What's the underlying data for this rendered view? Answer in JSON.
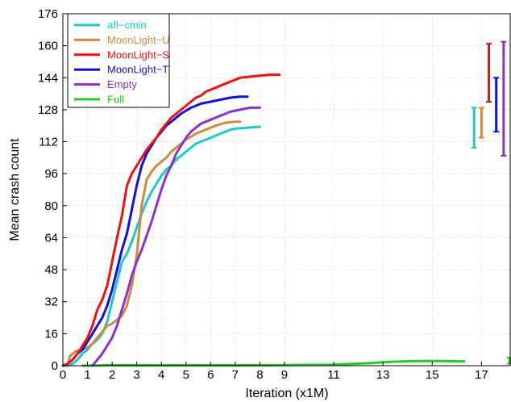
{
  "chart_data": {
    "type": "line",
    "title": "",
    "xlabel": "Iteration (x1M)",
    "ylabel": "Mean crash count",
    "xlim": [
      0,
      18.2
    ],
    "ylim": [
      0,
      176
    ],
    "x_ticks": [
      0,
      1,
      2,
      3,
      4,
      5,
      6,
      7,
      8,
      9,
      11,
      13,
      15,
      17
    ],
    "y_ticks": [
      0,
      16,
      32,
      48,
      64,
      80,
      96,
      112,
      128,
      144,
      160,
      176
    ],
    "grid": true,
    "legend_position": "top-left",
    "series": [
      {
        "name": "afl−cmin",
        "color": "#1ec8c8",
        "points": [
          [
            0,
            0
          ],
          [
            0.2,
            0
          ],
          [
            0.4,
            1
          ],
          [
            0.6,
            3
          ],
          [
            0.8,
            6
          ],
          [
            1.0,
            8
          ],
          [
            1.2,
            11
          ],
          [
            1.4,
            13
          ],
          [
            1.6,
            16
          ],
          [
            1.8,
            22
          ],
          [
            2.0,
            32
          ],
          [
            2.2,
            42
          ],
          [
            2.4,
            52
          ],
          [
            2.6,
            56
          ],
          [
            2.8,
            62
          ],
          [
            3.0,
            69
          ],
          [
            3.2,
            76
          ],
          [
            3.4,
            82
          ],
          [
            3.6,
            87
          ],
          [
            3.8,
            91
          ],
          [
            4.0,
            95
          ],
          [
            4.2,
            98
          ],
          [
            4.4,
            100
          ],
          [
            4.6,
            103
          ],
          [
            4.8,
            105
          ],
          [
            5.0,
            107
          ],
          [
            5.2,
            109
          ],
          [
            5.4,
            111
          ],
          [
            5.6,
            112
          ],
          [
            5.8,
            113
          ],
          [
            6.0,
            114
          ],
          [
            6.2,
            115
          ],
          [
            6.4,
            116
          ],
          [
            6.6,
            117
          ],
          [
            6.8,
            118
          ],
          [
            7.0,
            118.5
          ],
          [
            7.5,
            119
          ],
          [
            8.0,
            119.5
          ]
        ]
      },
      {
        "name": "MoonLight−U",
        "color": "#d08a40",
        "points": [
          [
            0,
            0
          ],
          [
            0.2,
            1
          ],
          [
            0.3,
            5
          ],
          [
            0.5,
            7
          ],
          [
            0.7,
            8
          ],
          [
            1.0,
            9
          ],
          [
            1.2,
            11
          ],
          [
            1.4,
            14
          ],
          [
            1.6,
            17
          ],
          [
            1.8,
            20
          ],
          [
            2.0,
            21
          ],
          [
            2.2,
            23
          ],
          [
            2.4,
            25
          ],
          [
            2.6,
            30
          ],
          [
            2.8,
            40
          ],
          [
            3.0,
            55
          ],
          [
            3.2,
            80
          ],
          [
            3.4,
            93
          ],
          [
            3.6,
            97
          ],
          [
            3.8,
            100
          ],
          [
            4.0,
            102
          ],
          [
            4.2,
            104
          ],
          [
            4.4,
            107
          ],
          [
            4.6,
            109
          ],
          [
            4.8,
            111
          ],
          [
            5.0,
            113
          ],
          [
            5.4,
            116
          ],
          [
            5.8,
            118
          ],
          [
            6.2,
            120
          ],
          [
            6.6,
            121.5
          ],
          [
            7.0,
            122
          ],
          [
            7.2,
            122
          ]
        ]
      },
      {
        "name": "MoonLight−S",
        "color": "#ee1111",
        "points": [
          [
            0,
            0
          ],
          [
            0.2,
            1
          ],
          [
            0.4,
            3
          ],
          [
            0.6,
            6
          ],
          [
            0.8,
            10
          ],
          [
            1.0,
            14
          ],
          [
            1.2,
            20
          ],
          [
            1.4,
            28
          ],
          [
            1.6,
            33
          ],
          [
            1.8,
            40
          ],
          [
            2.0,
            52
          ],
          [
            2.2,
            64
          ],
          [
            2.4,
            75
          ],
          [
            2.6,
            90
          ],
          [
            2.8,
            96
          ],
          [
            3.0,
            100
          ],
          [
            3.2,
            104
          ],
          [
            3.4,
            108
          ],
          [
            3.6,
            111
          ],
          [
            3.8,
            114
          ],
          [
            4.0,
            118
          ],
          [
            4.2,
            121
          ],
          [
            4.4,
            124
          ],
          [
            4.6,
            126
          ],
          [
            4.8,
            128
          ],
          [
            5.0,
            130
          ],
          [
            5.2,
            132
          ],
          [
            5.4,
            134
          ],
          [
            5.6,
            135
          ],
          [
            5.8,
            137
          ],
          [
            6.0,
            138
          ],
          [
            6.2,
            139
          ],
          [
            6.4,
            140
          ],
          [
            6.6,
            141
          ],
          [
            6.8,
            142
          ],
          [
            7.0,
            143
          ],
          [
            7.2,
            144
          ],
          [
            7.6,
            144.5
          ],
          [
            8.0,
            145
          ],
          [
            8.4,
            145.5
          ],
          [
            8.8,
            145.5
          ]
        ]
      },
      {
        "name": "MoonLight−T",
        "color": "#1010dd",
        "points": [
          [
            0,
            0
          ],
          [
            0.2,
            1
          ],
          [
            0.4,
            3
          ],
          [
            0.6,
            6
          ],
          [
            0.8,
            8
          ],
          [
            1.0,
            12
          ],
          [
            1.2,
            16
          ],
          [
            1.4,
            20
          ],
          [
            1.6,
            24
          ],
          [
            1.8,
            30
          ],
          [
            2.0,
            38
          ],
          [
            2.2,
            48
          ],
          [
            2.4,
            58
          ],
          [
            2.6,
            66
          ],
          [
            2.8,
            78
          ],
          [
            3.0,
            90
          ],
          [
            3.2,
            100
          ],
          [
            3.4,
            106
          ],
          [
            3.6,
            110
          ],
          [
            3.8,
            114
          ],
          [
            4.0,
            117
          ],
          [
            4.2,
            120
          ],
          [
            4.4,
            122
          ],
          [
            4.6,
            124
          ],
          [
            4.8,
            126
          ],
          [
            5.0,
            127.5
          ],
          [
            5.2,
            129
          ],
          [
            5.4,
            130
          ],
          [
            5.6,
            131
          ],
          [
            5.8,
            131.5
          ],
          [
            6.0,
            132
          ],
          [
            6.4,
            133
          ],
          [
            6.8,
            134
          ],
          [
            7.2,
            134.5
          ],
          [
            7.5,
            134.5
          ]
        ]
      },
      {
        "name": "Empty",
        "color": "#8833cc",
        "points": [
          [
            1.2,
            0
          ],
          [
            1.4,
            3
          ],
          [
            1.6,
            6
          ],
          [
            1.8,
            10
          ],
          [
            2.0,
            14
          ],
          [
            2.2,
            20
          ],
          [
            2.4,
            28
          ],
          [
            2.6,
            36
          ],
          [
            2.8,
            45
          ],
          [
            3.0,
            52
          ],
          [
            3.2,
            58
          ],
          [
            3.4,
            65
          ],
          [
            3.6,
            72
          ],
          [
            3.8,
            80
          ],
          [
            4.0,
            88
          ],
          [
            4.2,
            95
          ],
          [
            4.4,
            100
          ],
          [
            4.6,
            106
          ],
          [
            4.8,
            110
          ],
          [
            5.0,
            114
          ],
          [
            5.2,
            117
          ],
          [
            5.4,
            119
          ],
          [
            5.6,
            121
          ],
          [
            5.8,
            122
          ],
          [
            6.0,
            123
          ],
          [
            6.2,
            124
          ],
          [
            6.4,
            125
          ],
          [
            6.6,
            126
          ],
          [
            6.8,
            127
          ],
          [
            7.2,
            128
          ],
          [
            7.6,
            129
          ],
          [
            8.0,
            129
          ]
        ]
      },
      {
        "name": "Full",
        "color": "#22cc22",
        "points": [
          [
            0.8,
            0
          ],
          [
            2,
            0.2
          ],
          [
            4,
            0.2
          ],
          [
            6,
            0.2
          ],
          [
            8,
            0.2
          ],
          [
            9,
            0.3
          ],
          [
            10,
            0.4
          ],
          [
            10.5,
            0.4
          ],
          [
            11,
            0.5
          ],
          [
            11.5,
            0.8
          ],
          [
            12,
            1.0
          ],
          [
            12.5,
            1.3
          ],
          [
            13,
            1.7
          ],
          [
            13.5,
            2.0
          ],
          [
            14,
            2.2
          ],
          [
            14.5,
            2.3
          ],
          [
            15,
            2.3
          ],
          [
            15.5,
            2.3
          ],
          [
            16,
            2.2
          ],
          [
            16.3,
            2.2
          ]
        ]
      }
    ],
    "error_bars": [
      {
        "series": "afl−cmin",
        "x": 16.7,
        "low": 109,
        "high": 129
      },
      {
        "series": "MoonLight−U",
        "x": 17.0,
        "low": 114,
        "high": 129
      },
      {
        "series": "MoonLight−S",
        "x": 17.3,
        "low": 132,
        "high": 161
      },
      {
        "series": "MoonLight−T",
        "x": 17.6,
        "low": 117,
        "high": 144
      },
      {
        "series": "Empty",
        "x": 17.9,
        "low": 105,
        "high": 162
      },
      {
        "series": "Full",
        "x": 18.15,
        "low": 1,
        "high": 4
      }
    ]
  }
}
